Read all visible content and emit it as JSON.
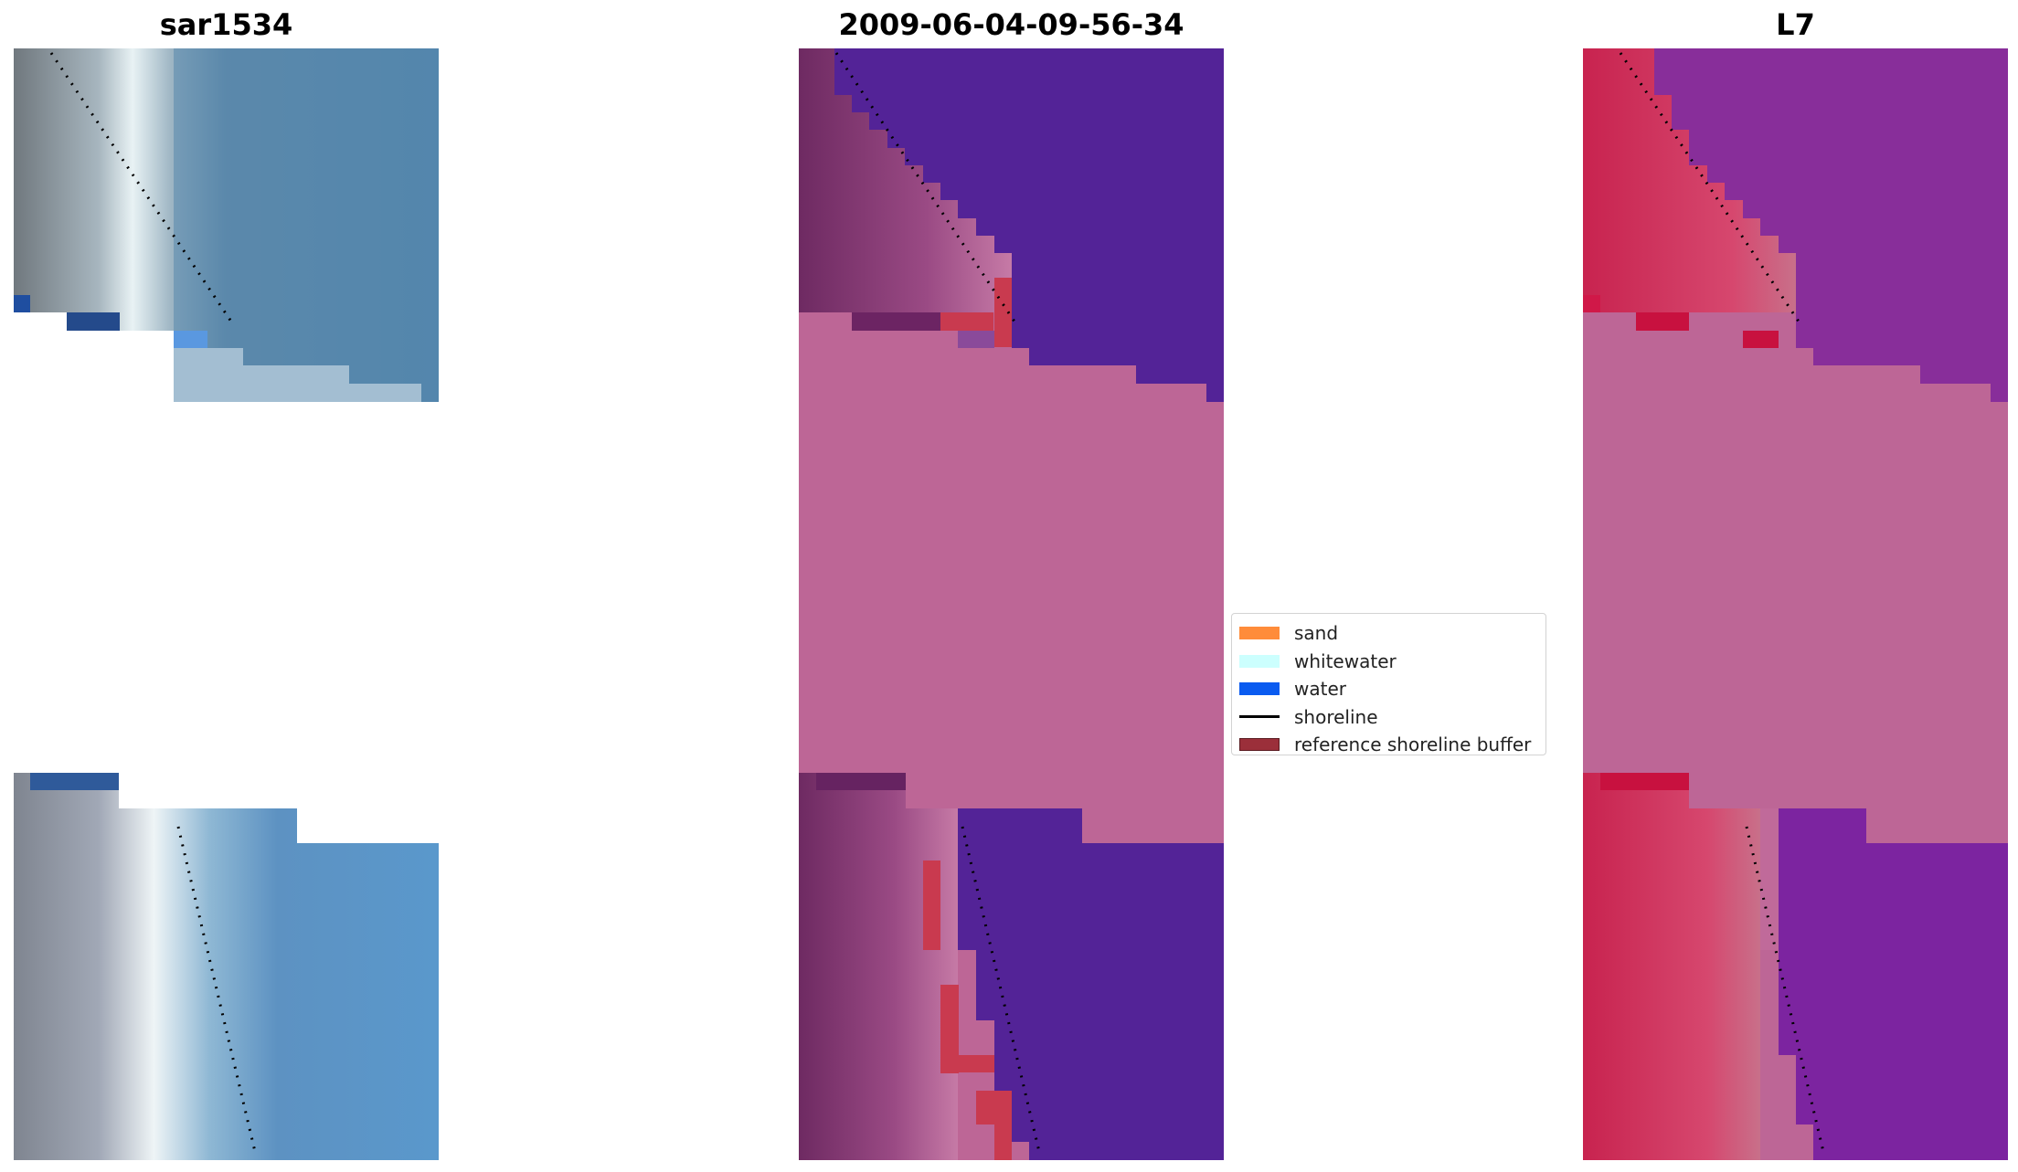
{
  "panels": [
    {
      "title": "sar1534"
    },
    {
      "title": "2009-06-04-09-56-34"
    },
    {
      "title": "L7"
    }
  ],
  "legend": {
    "items": [
      {
        "label": "sand",
        "color": "#ff8c3a",
        "kind": "patch"
      },
      {
        "label": "whitewater",
        "color": "#ccfffe",
        "kind": "patch"
      },
      {
        "label": "water",
        "color": "#0a5bf0",
        "kind": "patch"
      },
      {
        "label": "shoreline",
        "color": "#000000",
        "kind": "line"
      },
      {
        "label": "reference shoreline buffer",
        "color": "#9b2f3a",
        "kind": "patch"
      }
    ]
  },
  "colors": {
    "masked_region": "#bd6696",
    "classified_water": "#532397",
    "buffer": "#c93a4f",
    "shoreline": "#000000"
  }
}
